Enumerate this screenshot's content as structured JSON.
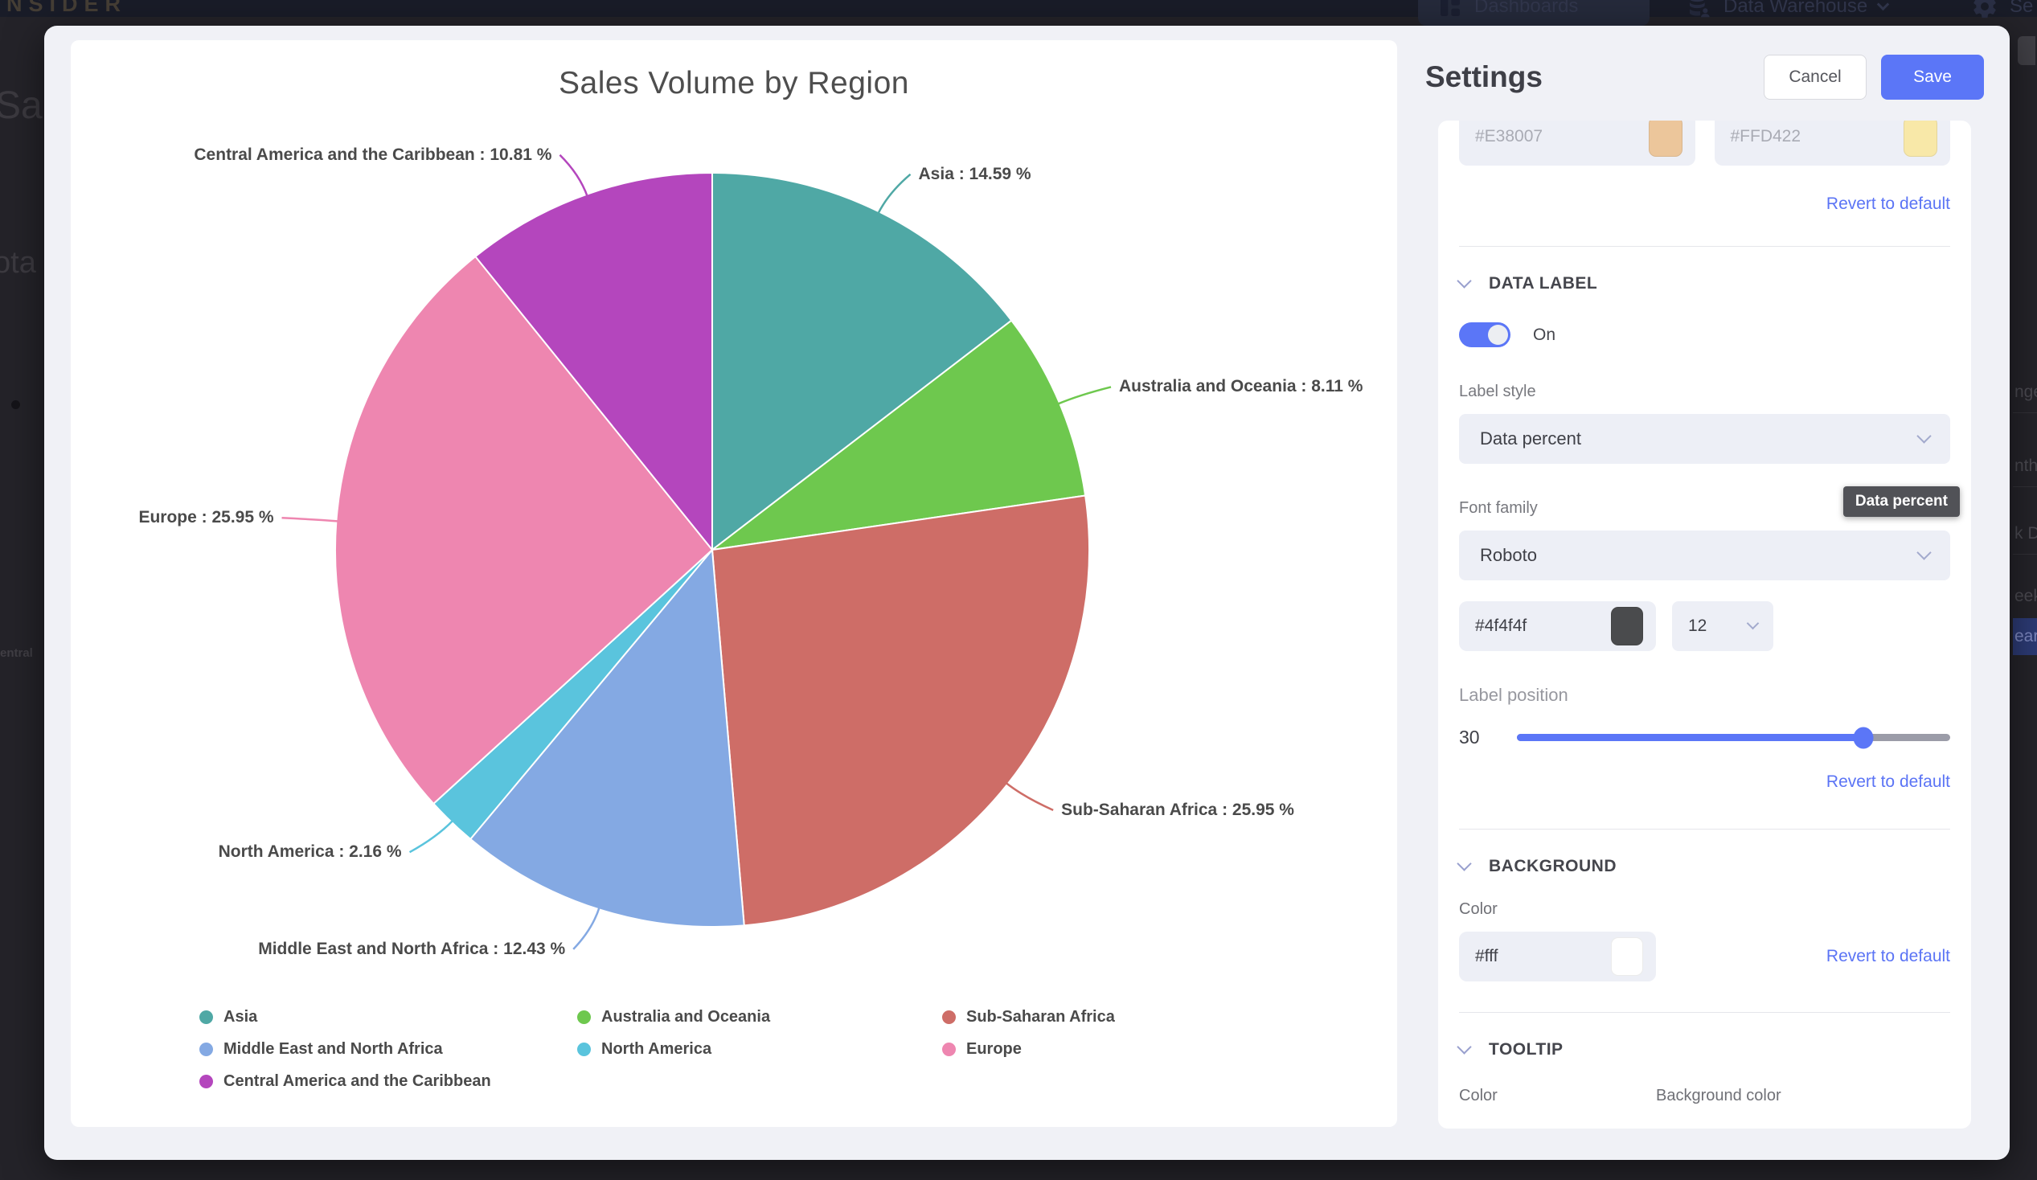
{
  "app": {
    "topbar": {
      "logo_fragment": "NSIDER",
      "dashboards_label": "Dashboards",
      "warehouse_label": "Data Warehouse",
      "settings_label_fragment": "Se"
    },
    "background_fragments": {
      "left": [
        "Sal",
        "ota",
        "entral"
      ],
      "right": [
        "nge",
        "nth",
        "k D",
        "eek",
        "ear"
      ]
    }
  },
  "chart_data": {
    "type": "pie",
    "title": "Sales Volume by Region",
    "unit": "%",
    "label_format": "{name} : {value} %",
    "direction": "clockwise",
    "start_angle_deg": 0,
    "legend_position": "bottom",
    "slices": [
      {
        "name": "Asia",
        "value": 14.59,
        "color": "#4fa8a5"
      },
      {
        "name": "Australia and Oceania",
        "value": 8.11,
        "color": "#6ec84e"
      },
      {
        "name": "Sub-Saharan Africa",
        "value": 25.95,
        "color": "#ce6d67"
      },
      {
        "name": "Middle East and North Africa",
        "value": 12.43,
        "color": "#84a9e3"
      },
      {
        "name": "North America",
        "value": 2.16,
        "color": "#5ac4dd"
      },
      {
        "name": "Europe",
        "value": 25.95,
        "color": "#ee86b0"
      },
      {
        "name": "Central America and the Caribbean",
        "value": 10.81,
        "color": "#b446bd"
      }
    ],
    "legend_columns": [
      [
        0,
        3,
        6
      ],
      [
        1,
        4
      ],
      [
        2,
        5
      ]
    ]
  },
  "settings": {
    "title": "Settings",
    "cancel_label": "Cancel",
    "save_label": "Save",
    "revert_label": "Revert to default",
    "scrolled_color_inputs": [
      {
        "value": "#E38007",
        "swatch": "#ecc69b"
      },
      {
        "value": "#FFD422",
        "swatch": "#f8e8a8"
      }
    ],
    "data_label_section": {
      "title": "DATA LABEL",
      "toggle_state": "On",
      "label_style_label": "Label style",
      "label_style_value": "Data percent",
      "font_family_label": "Font family",
      "font_family_value": "Roboto",
      "hover_tooltip": "Data percent",
      "font_color_value": "#4f4f4f",
      "font_color_swatch": "#4a4b4d",
      "font_size_value": "12",
      "label_position_label": "Label position",
      "label_position_value": 30,
      "slider_percent": 80
    },
    "background_section": {
      "title": "BACKGROUND",
      "color_label": "Color",
      "color_value": "#fff",
      "color_swatch": "#ffffff"
    },
    "tooltip_section": {
      "title": "TOOLTIP",
      "color_label": "Color",
      "background_color_label": "Background color"
    }
  },
  "colors": {
    "accent": "#5b76f7",
    "link": "#5b74f5",
    "modal_bg": "#f0f1f6",
    "card_bg": "#ffffff",
    "input_bg": "#edeff6",
    "topbar_bg": "#191c28",
    "page_bg": "#242329",
    "text_dark": "#45464d",
    "text_gray": "#77787e",
    "chart_label": "#4a4a4a"
  }
}
